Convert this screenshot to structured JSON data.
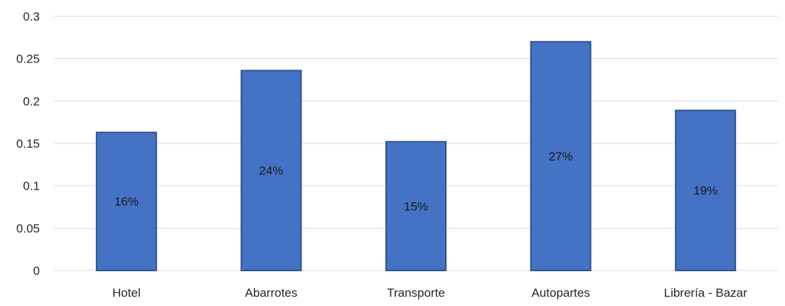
{
  "chart_data": {
    "type": "bar",
    "categories": [
      "Hotel",
      "Abarrotes",
      "Transporte",
      "Autopartes",
      "Librería - Bazar"
    ],
    "values": [
      0.163,
      0.236,
      0.152,
      0.27,
      0.189
    ],
    "data_labels": [
      "16%",
      "24%",
      "15%",
      "27%",
      "19%"
    ],
    "y_ticks": [
      0,
      0.05,
      0.1,
      0.15,
      0.2,
      0.25,
      0.3
    ],
    "y_tick_labels": [
      "0",
      "0.05",
      "0.1",
      "0.15",
      "0.2",
      "0.25",
      "0.3"
    ],
    "ylim": [
      0,
      0.3
    ],
    "title": "",
    "xlabel": "",
    "ylabel": "",
    "grid": true,
    "legend": "none",
    "colors": {
      "bar_fill": "#4472C4",
      "bar_stroke": "#2F528F",
      "gridline": "#D9D9D9",
      "text": "#262626"
    }
  }
}
